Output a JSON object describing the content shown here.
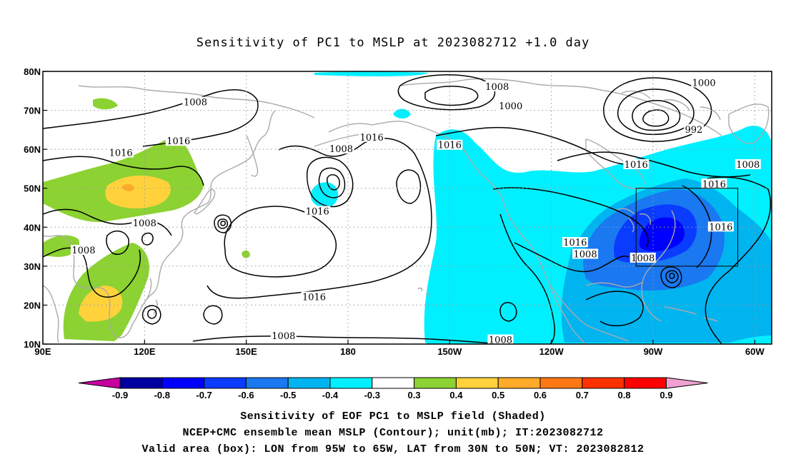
{
  "title": "Sensitivity of PC1 to MSLP at 2023082712 +1.0 day",
  "captions": [
    "Sensitivity of EOF PC1 to MSLP field (Shaded)",
    "NCEP+CMC ensemble mean MSLP (Contour); unit(mb); IT:2023082712",
    "Valid area (box): LON from 95W to 65W, LAT from 30N to 50N; VT: 2023082812"
  ],
  "map": {
    "lon_range_east": [
      90,
      305
    ],
    "lat_range": [
      10,
      80
    ],
    "lon_ticks": [
      {
        "lon": 90,
        "label": "90E"
      },
      {
        "lon": 120,
        "label": "120E"
      },
      {
        "lon": 150,
        "label": "150E"
      },
      {
        "lon": 180,
        "label": "180"
      },
      {
        "lon": 210,
        "label": "150W"
      },
      {
        "lon": 240,
        "label": "120W"
      },
      {
        "lon": 270,
        "label": "90W"
      },
      {
        "lon": 300,
        "label": "60W"
      }
    ],
    "lat_ticks": [
      {
        "lat": 10,
        "label": "10N"
      },
      {
        "lat": 20,
        "label": "20N"
      },
      {
        "lat": 30,
        "label": "30N"
      },
      {
        "lat": 40,
        "label": "40N"
      },
      {
        "lat": 50,
        "label": "50N"
      },
      {
        "lat": 60,
        "label": "60N"
      },
      {
        "lat": 70,
        "label": "70N"
      },
      {
        "lat": 80,
        "label": "80N"
      }
    ],
    "grid": true,
    "valid_box": {
      "lon_min": 265,
      "lon_max": 295,
      "lat_min": 30,
      "lat_max": 50
    },
    "contour_labels": [
      {
        "lon": 135,
        "lat": 72,
        "text": "1008"
      },
      {
        "lon": 113,
        "lat": 59,
        "text": "1016"
      },
      {
        "lon": 130,
        "lat": 62,
        "text": "1016"
      },
      {
        "lon": 120,
        "lat": 41,
        "text": "1008"
      },
      {
        "lon": 102,
        "lat": 34,
        "text": "1008"
      },
      {
        "lon": 161,
        "lat": 12,
        "text": "1008"
      },
      {
        "lon": 178,
        "lat": 60,
        "text": "1008"
      },
      {
        "lon": 187,
        "lat": 63,
        "text": "1016"
      },
      {
        "lon": 171,
        "lat": 44,
        "text": "1016"
      },
      {
        "lon": 170,
        "lat": 22,
        "text": "1016"
      },
      {
        "lon": 210,
        "lat": 61,
        "text": "1016"
      },
      {
        "lon": 224,
        "lat": 76,
        "text": "1008"
      },
      {
        "lon": 228,
        "lat": 71,
        "text": "1000"
      },
      {
        "lon": 247,
        "lat": 36,
        "text": "1016"
      },
      {
        "lon": 250,
        "lat": 33,
        "text": "1008"
      },
      {
        "lon": 225,
        "lat": 11,
        "text": "1008"
      },
      {
        "lon": 285,
        "lat": 77,
        "text": "1000"
      },
      {
        "lon": 282,
        "lat": 65,
        "text": "992"
      },
      {
        "lon": 265,
        "lat": 56,
        "text": "1016"
      },
      {
        "lon": 288,
        "lat": 51,
        "text": "1016"
      },
      {
        "lon": 298,
        "lat": 56,
        "text": "1008"
      },
      {
        "lon": 290,
        "lat": 40,
        "text": "1016"
      },
      {
        "lon": 267,
        "lat": 32,
        "text": "1008"
      }
    ]
  },
  "colorbar": {
    "labels": [
      "-0.9",
      "-0.8",
      "-0.7",
      "-0.6",
      "-0.5",
      "-0.4",
      "-0.3",
      "0.3",
      "0.4",
      "0.5",
      "0.6",
      "0.7",
      "0.8",
      "0.9"
    ],
    "colors": {
      "low_end": "#c800a0",
      "bins": [
        "#0000a0",
        "#0000ff",
        "#0a3cff",
        "#1a78f0",
        "#00b4f0",
        "#00f0ff",
        "#ffffff",
        "#8cd232",
        "#ffd23c",
        "#ffaa28",
        "#ff7814",
        "#ff3200",
        "#ff0000"
      ],
      "high_end": "#f0a0d2"
    }
  },
  "colors": {
    "land_outline": "#aaaaaa",
    "contour": "#000000",
    "grid": "#999999"
  }
}
